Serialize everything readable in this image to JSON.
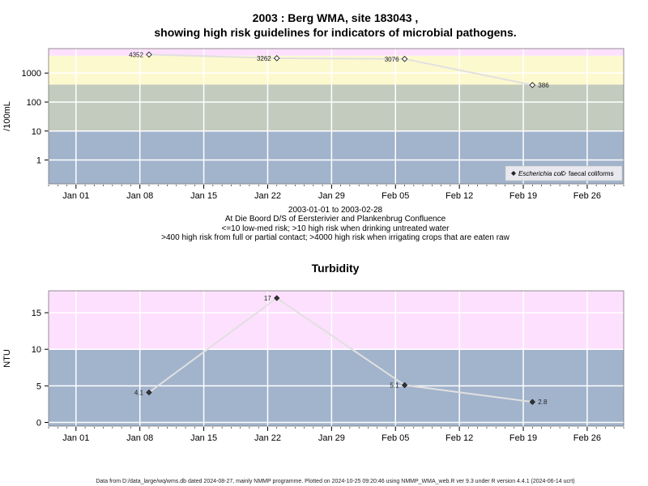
{
  "header": {
    "title_line1": "2003 : Berg WMA, site 183043 ,",
    "title_line2": "showing high risk guidelines for indicators of microbial pathogens."
  },
  "info": {
    "date_range": "2003-01-01 to 2003-02-28",
    "location": "At Die Boord D/S of Eersterivier and Plankenbrug Confluence",
    "guideline1": "<=10 low-med risk; >10 high risk when drinking untreated water",
    "guideline2": ">400 high risk from full or partial contact; >4000 high risk when irrigating crops that are eaten raw"
  },
  "footer": {
    "note": "Data from D:/data_large/wq/wms.db dated 2024-08-27, mainly NMMP programme. Plotted on 2024-10-25 09:20:46 using NMMP_WMA_web.R ver 9.3 under R version 4.4.1 (2024-06-14 ucrt)"
  },
  "colors": {
    "pink": "#fde0fd",
    "yellow": "#fdf9cf",
    "green": "#c3cbbe",
    "blue": "#a2b3cc",
    "line": "#e0e0e0",
    "grid": "#ffffff"
  },
  "chart_data": [
    {
      "type": "scatter",
      "title": "",
      "ylabel": "/100mL",
      "yscale": "log",
      "ylim": [
        0.15,
        7000
      ],
      "xlim": [
        "2002-12-29",
        "2003-03-02"
      ],
      "x_ticks": [
        "Jan 01",
        "Jan 08",
        "Jan 15",
        "Jan 22",
        "Jan 29",
        "Feb 05",
        "Feb 12",
        "Feb 19",
        "Feb 26"
      ],
      "y_ticks": [
        "1",
        "10",
        "100",
        "1000"
      ],
      "y_tick_values": [
        1,
        10,
        100,
        1000
      ],
      "bands": [
        {
          "from": 0.15,
          "to": 10,
          "color": "blue"
        },
        {
          "from": 10,
          "to": 400,
          "color": "green"
        },
        {
          "from": 400,
          "to": 4000,
          "color": "yellow"
        },
        {
          "from": 4000,
          "to": 7000,
          "color": "pink"
        }
      ],
      "legend_position": "bottom-right",
      "series": [
        {
          "name": "Escherichia coli",
          "marker": "filled-diamond",
          "points": []
        },
        {
          "name": "faecal coliforms",
          "marker": "open-diamond",
          "points": [
            {
              "x": "2003-01-09",
              "y": 4352,
              "label": "4352"
            },
            {
              "x": "2003-01-23",
              "y": 3262,
              "label": "3262"
            },
            {
              "x": "2003-02-06",
              "y": 3076,
              "label": "3076"
            },
            {
              "x": "2003-02-20",
              "y": 386,
              "label": "386"
            }
          ]
        }
      ]
    },
    {
      "type": "scatter",
      "title": "Turbidity",
      "ylabel": "NTU",
      "yscale": "linear",
      "ylim": [
        -0.5,
        18
      ],
      "xlim": [
        "2002-12-29",
        "2003-03-02"
      ],
      "x_ticks": [
        "Jan 01",
        "Jan 08",
        "Jan 15",
        "Jan 22",
        "Jan 29",
        "Feb 05",
        "Feb 12",
        "Feb 19",
        "Feb 26"
      ],
      "y_ticks": [
        "0",
        "5",
        "10",
        "15"
      ],
      "y_tick_values": [
        0,
        5,
        10,
        15
      ],
      "bands": [
        {
          "from": -0.5,
          "to": 10,
          "color": "blue"
        },
        {
          "from": 10,
          "to": 18,
          "color": "pink"
        }
      ],
      "series": [
        {
          "name": "",
          "marker": "filled-diamond",
          "points": [
            {
              "x": "2003-01-09",
              "y": 4.1,
              "label": "4.1"
            },
            {
              "x": "2003-01-23",
              "y": 17,
              "label": "17"
            },
            {
              "x": "2003-02-06",
              "y": 5.1,
              "label": "5.1"
            },
            {
              "x": "2003-02-20",
              "y": 2.8,
              "label": "2.8"
            }
          ]
        }
      ]
    }
  ]
}
